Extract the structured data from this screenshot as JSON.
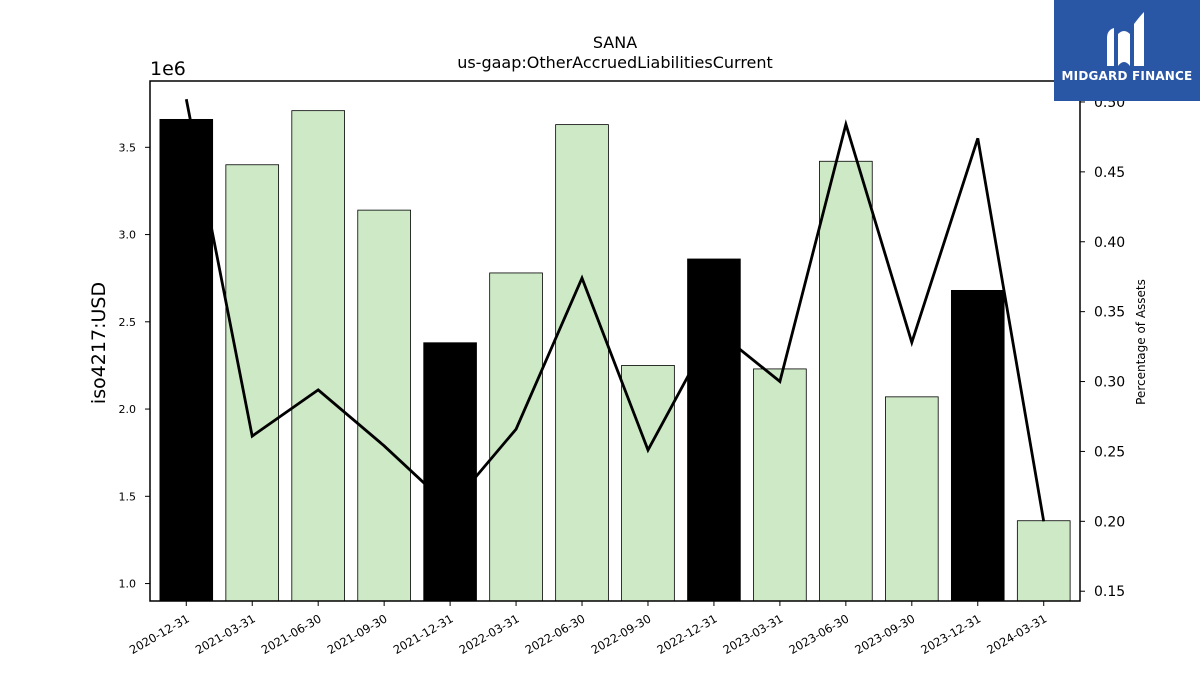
{
  "chart_data": {
    "type": "bar",
    "title": "SANA",
    "subtitle": "us-gaap:OtherAccruedLiabilitiesCurrent",
    "ylabel": "iso4217:USD",
    "y_offset_label": "1e6",
    "y2label": "Percentage of Assets",
    "categories": [
      "2020-12-31",
      "2021-03-31",
      "2021-06-30",
      "2021-09-30",
      "2021-12-31",
      "2022-03-31",
      "2022-06-30",
      "2022-09-30",
      "2022-12-31",
      "2023-03-31",
      "2023-06-30",
      "2023-09-30",
      "2023-12-31",
      "2024-03-31"
    ],
    "series": [
      {
        "type": "bar",
        "values": [
          3.66,
          3.4,
          3.71,
          3.14,
          2.38,
          2.78,
          3.63,
          2.25,
          2.86,
          2.23,
          3.42,
          2.07,
          2.68,
          1.36
        ],
        "annual": [
          true,
          false,
          false,
          false,
          true,
          false,
          false,
          false,
          true,
          false,
          false,
          false,
          true,
          false
        ],
        "color": "#cde9c6",
        "annual_color": "#000000"
      },
      {
        "type": "line",
        "axis": "right",
        "values": [
          0.502,
          0.261,
          0.294,
          0.254,
          0.21,
          0.266,
          0.374,
          0.251,
          0.338,
          0.3,
          0.484,
          0.328,
          0.474,
          0.2
        ],
        "color": "#000000"
      }
    ],
    "ylim": [
      0.9,
      3.88
    ],
    "yticks": [
      1.0,
      1.5,
      2.0,
      2.5,
      3.0,
      3.5
    ],
    "ytick_labels": [
      "1.0",
      "1.5",
      "2.0",
      "2.5",
      "3.0",
      "3.5"
    ],
    "y2lim": [
      0.143,
      0.515
    ],
    "y2ticks": [
      0.15,
      0.2,
      0.25,
      0.3,
      0.35,
      0.4,
      0.45,
      0.5
    ],
    "y2tick_labels": [
      "0.15",
      "0.20",
      "0.25",
      "0.30",
      "0.35",
      "0.40",
      "0.45",
      "0.50"
    ],
    "grid": false,
    "legend": "none"
  },
  "logo": {
    "text": "MIDGARD FINANCE",
    "color": "#2a56a6"
  }
}
